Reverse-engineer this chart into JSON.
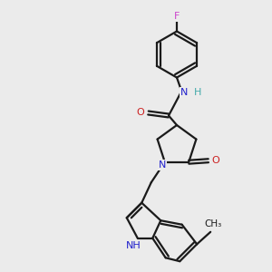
{
  "bg_color": "#ebebeb",
  "bond_color": "#1a1a1a",
  "N_color": "#2020cc",
  "O_color": "#cc2020",
  "F_color": "#cc44cc",
  "lw": 1.6,
  "figsize": [
    3.0,
    3.0
  ],
  "dpi": 100,
  "xlim": [
    0.0,
    10.0
  ],
  "ylim": [
    0.0,
    10.0
  ]
}
